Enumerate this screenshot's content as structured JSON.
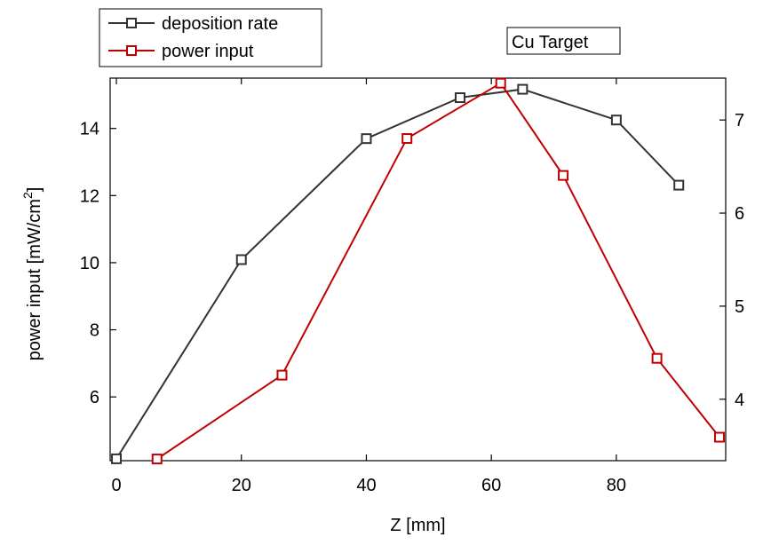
{
  "chart_data": {
    "type": "line",
    "annotation": "Cu Target",
    "xlabel": "Z [mm]",
    "ylabel_left": "power input [mW/cm",
    "ylabel_left_superscript": "2",
    "ylabel_left_suffix": "]",
    "ylabel_right": "",
    "legend_position": "top-left",
    "grid": false,
    "x_axis": {
      "range": [
        -1,
        97.5
      ],
      "ticks": [
        0,
        20,
        40,
        60,
        80
      ],
      "tick_labels": [
        "0",
        "20",
        "40",
        "60",
        "80"
      ]
    },
    "y_left": {
      "range": [
        4.1,
        15.5
      ],
      "ticks": [
        6,
        8,
        10,
        12,
        14
      ],
      "tick_labels": [
        "6",
        "8",
        "10",
        "12",
        "14"
      ]
    },
    "y_right": {
      "range": [
        3.34,
        7.45
      ],
      "ticks": [
        4,
        5,
        6,
        7
      ],
      "tick_labels": [
        "4",
        "5",
        "6",
        "7"
      ]
    },
    "series": [
      {
        "name": "deposition rate",
        "axis": "right",
        "color": "#333333",
        "marker": "square",
        "points": [
          {
            "x": 0,
            "y": 3.36
          },
          {
            "x": 20,
            "y": 5.5
          },
          {
            "x": 40,
            "y": 6.8
          },
          {
            "x": 55,
            "y": 7.24
          },
          {
            "x": 65,
            "y": 7.33
          },
          {
            "x": 80,
            "y": 7.0
          },
          {
            "x": 90,
            "y": 6.3
          }
        ]
      },
      {
        "name": "power input",
        "axis": "left",
        "color": "#c00000",
        "marker": "square",
        "points": [
          {
            "x": 6.5,
            "y": 4.15
          },
          {
            "x": 26.5,
            "y": 6.65
          },
          {
            "x": 46.5,
            "y": 13.7
          },
          {
            "x": 61.5,
            "y": 15.35
          },
          {
            "x": 71.5,
            "y": 12.6
          },
          {
            "x": 86.5,
            "y": 7.15
          },
          {
            "x": 96.5,
            "y": 4.8
          }
        ]
      }
    ]
  }
}
